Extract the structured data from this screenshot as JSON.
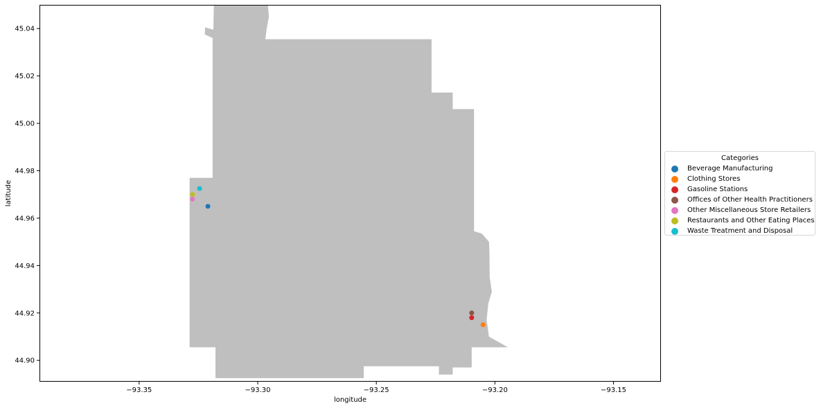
{
  "chart_data": {
    "type": "scatter",
    "title": "",
    "xlabel": "longitude",
    "ylabel": "latitude",
    "xlim": [
      -93.392,
      -93.13
    ],
    "ylim": [
      44.891,
      45.05
    ],
    "xticks": [
      -93.35,
      -93.3,
      -93.25,
      -93.2,
      -93.15
    ],
    "xtick_labels": [
      "−93.35",
      "−93.30",
      "−93.25",
      "−93.20",
      "−93.15"
    ],
    "yticks": [
      44.9,
      44.92,
      44.94,
      44.96,
      44.98,
      45.0,
      45.02,
      45.04
    ],
    "ytick_labels": [
      "44.90",
      "44.92",
      "44.94",
      "44.96",
      "44.98",
      "45.00",
      "45.02",
      "45.04"
    ],
    "grid": false,
    "legend_position": "right",
    "background_shape_color": "#bfbfbf",
    "background_shape_lonlat": [
      [
        -93.3185,
        45.05
      ],
      [
        -93.2957,
        45.05
      ],
      [
        -93.2953,
        45.045
      ],
      [
        -93.2962,
        45.04
      ],
      [
        -93.2968,
        45.0355
      ],
      [
        -93.2267,
        45.0355
      ],
      [
        -93.2267,
        45.013
      ],
      [
        -93.2178,
        45.013
      ],
      [
        -93.2178,
        45.006
      ],
      [
        -93.2088,
        45.006
      ],
      [
        -93.2088,
        44.9545
      ],
      [
        -93.2055,
        44.9535
      ],
      [
        -93.2025,
        44.95
      ],
      [
        -93.2023,
        44.945
      ],
      [
        -93.2022,
        44.935
      ],
      [
        -93.2013,
        44.929
      ],
      [
        -93.2028,
        44.924
      ],
      [
        -93.2035,
        44.917
      ],
      [
        -93.2025,
        44.91
      ],
      [
        -93.1945,
        44.9055
      ],
      [
        -93.2098,
        44.9055
      ],
      [
        -93.2098,
        44.897
      ],
      [
        -93.2178,
        44.897
      ],
      [
        -93.2178,
        44.894
      ],
      [
        -93.2236,
        44.894
      ],
      [
        -93.2236,
        44.8975
      ],
      [
        -93.2553,
        44.8975
      ],
      [
        -93.2553,
        44.8925
      ],
      [
        -93.3178,
        44.8925
      ],
      [
        -93.3178,
        44.9055
      ],
      [
        -93.3287,
        44.9055
      ],
      [
        -93.3287,
        44.977
      ],
      [
        -93.319,
        44.977
      ],
      [
        -93.319,
        45.036
      ],
      [
        -93.3223,
        45.0375
      ],
      [
        -93.3222,
        45.0405
      ],
      [
        -93.3187,
        45.0395
      ],
      [
        -93.3185,
        45.05
      ]
    ],
    "points": [
      {
        "category": "Beverage Manufacturing",
        "x": -93.321,
        "y": 44.965
      },
      {
        "category": "Clothing Stores",
        "x": -93.205,
        "y": 44.915
      },
      {
        "category": "Gasoline Stations",
        "x": -93.2098,
        "y": 44.918
      },
      {
        "category": "Offices of Other Health Practitioners",
        "x": -93.2098,
        "y": 44.92
      },
      {
        "category": "Other Miscellaneous Store Retailers",
        "x": -93.3275,
        "y": 44.968
      },
      {
        "category": "Restaurants and Other Eating Places",
        "x": -93.3275,
        "y": 44.97
      },
      {
        "category": "Waste Treatment and Disposal",
        "x": -93.3245,
        "y": 44.9725
      }
    ],
    "legend": {
      "title": "Categories",
      "entries": [
        {
          "label": "Beverage Manufacturing",
          "color": "#1f77b4"
        },
        {
          "label": "Clothing Stores",
          "color": "#ff7f0e"
        },
        {
          "label": "Gasoline Stations",
          "color": "#d62728"
        },
        {
          "label": "Offices of Other Health Practitioners",
          "color": "#8c564b"
        },
        {
          "label": "Other Miscellaneous Store Retailers",
          "color": "#e377c2"
        },
        {
          "label": "Restaurants and Other Eating Places",
          "color": "#bcbd22"
        },
        {
          "label": "Waste Treatment and Disposal",
          "color": "#17becf"
        }
      ]
    }
  }
}
